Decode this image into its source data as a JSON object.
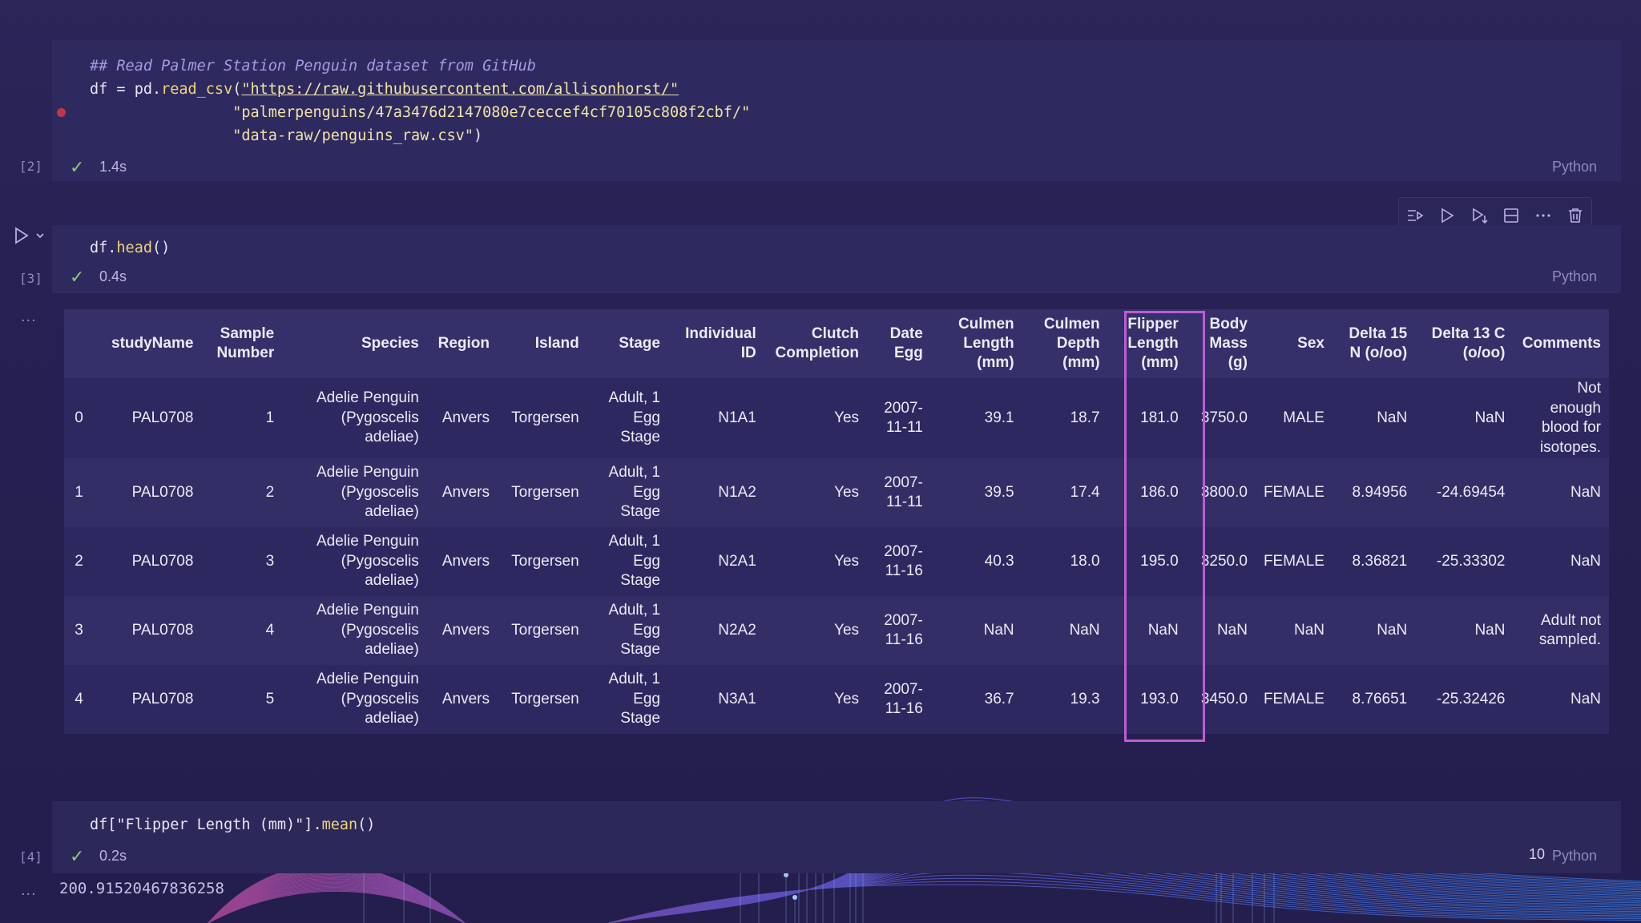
{
  "cells": {
    "c2": {
      "exec_label": "[2]",
      "comment": "## Read Palmer Station Penguin dataset from GitHub",
      "line1_pre": "df = pd.",
      "line1_fn": "read_csv",
      "line1_open": "(",
      "line1_str": "\"https://raw.githubusercontent.com/allisonhorst/\"",
      "line2_str": "\"palmerpenguins/47a3476d2147080e7ceccef4cf70105c808f2cbf/\"",
      "line3_str": "\"data-raw/penguins_raw.csv\"",
      "line3_close": ")",
      "time": "1.4s",
      "lang": "Python"
    },
    "c3": {
      "exec_label": "[3]",
      "code_pre": "df.",
      "code_fn": "head",
      "code_post": "()",
      "time": "0.4s",
      "lang": "Python"
    },
    "c4": {
      "exec_label": "[4]",
      "code_pre": "df[\"Flipper Length (mm)\"].",
      "code_fn": "mean",
      "code_post": "()",
      "time": "0.2s",
      "lang": "Python",
      "overlay_num": "10",
      "output": "200.91520467836258"
    },
    "ellipsis": "..."
  },
  "table": {
    "headers": [
      [
        "studyName"
      ],
      [
        "Sample",
        "Number"
      ],
      [
        "Species"
      ],
      [
        "Region"
      ],
      [
        "Island"
      ],
      [
        "Stage"
      ],
      [
        "Individual",
        "ID"
      ],
      [
        "Clutch",
        "Completion"
      ],
      [
        "Date",
        "Egg"
      ],
      [
        "Culmen",
        "Length",
        "(mm)"
      ],
      [
        "Culmen",
        "Depth",
        "(mm)"
      ],
      [
        "Flipper",
        "Length",
        "(mm)"
      ],
      [
        "Body",
        "Mass",
        "(g)"
      ],
      [
        "Sex"
      ],
      [
        "Delta 15",
        "N (o/oo)"
      ],
      [
        "Delta 13 C",
        "(o/oo)"
      ],
      [
        "Comments"
      ]
    ],
    "rows": [
      {
        "idx": "0",
        "cells": [
          [
            "PAL0708"
          ],
          [
            "1"
          ],
          [
            "Adelie Penguin",
            "(Pygoscelis adeliae)"
          ],
          [
            "Anvers"
          ],
          [
            "Torgersen"
          ],
          [
            "Adult, 1",
            "Egg",
            "Stage"
          ],
          [
            "N1A1"
          ],
          [
            "Yes"
          ],
          [
            "2007-",
            "11-11"
          ],
          [
            "39.1"
          ],
          [
            "18.7"
          ],
          [
            "181.0"
          ],
          [
            "3750.0"
          ],
          [
            "MALE"
          ],
          [
            "NaN"
          ],
          [
            "NaN"
          ],
          [
            "Not",
            "enough",
            "blood for",
            "isotopes."
          ]
        ]
      },
      {
        "idx": "1",
        "cells": [
          [
            "PAL0708"
          ],
          [
            "2"
          ],
          [
            "Adelie Penguin",
            "(Pygoscelis adeliae)"
          ],
          [
            "Anvers"
          ],
          [
            "Torgersen"
          ],
          [
            "Adult, 1",
            "Egg",
            "Stage"
          ],
          [
            "N1A2"
          ],
          [
            "Yes"
          ],
          [
            "2007-",
            "11-11"
          ],
          [
            "39.5"
          ],
          [
            "17.4"
          ],
          [
            "186.0"
          ],
          [
            "3800.0"
          ],
          [
            "FEMALE"
          ],
          [
            "8.94956"
          ],
          [
            "-24.69454"
          ],
          [
            "NaN"
          ]
        ]
      },
      {
        "idx": "2",
        "cells": [
          [
            "PAL0708"
          ],
          [
            "3"
          ],
          [
            "Adelie Penguin",
            "(Pygoscelis adeliae)"
          ],
          [
            "Anvers"
          ],
          [
            "Torgersen"
          ],
          [
            "Adult, 1",
            "Egg",
            "Stage"
          ],
          [
            "N2A1"
          ],
          [
            "Yes"
          ],
          [
            "2007-",
            "11-16"
          ],
          [
            "40.3"
          ],
          [
            "18.0"
          ],
          [
            "195.0"
          ],
          [
            "3250.0"
          ],
          [
            "FEMALE"
          ],
          [
            "8.36821"
          ],
          [
            "-25.33302"
          ],
          [
            "NaN"
          ]
        ]
      },
      {
        "idx": "3",
        "cells": [
          [
            "PAL0708"
          ],
          [
            "4"
          ],
          [
            "Adelie Penguin",
            "(Pygoscelis adeliae)"
          ],
          [
            "Anvers"
          ],
          [
            "Torgersen"
          ],
          [
            "Adult, 1",
            "Egg",
            "Stage"
          ],
          [
            "N2A2"
          ],
          [
            "Yes"
          ],
          [
            "2007-",
            "11-16"
          ],
          [
            "NaN"
          ],
          [
            "NaN"
          ],
          [
            "NaN"
          ],
          [
            "NaN"
          ],
          [
            "NaN"
          ],
          [
            "NaN"
          ],
          [
            "NaN"
          ],
          [
            "Adult not",
            "sampled."
          ]
        ]
      },
      {
        "idx": "4",
        "cells": [
          [
            "PAL0708"
          ],
          [
            "5"
          ],
          [
            "Adelie Penguin",
            "(Pygoscelis adeliae)"
          ],
          [
            "Anvers"
          ],
          [
            "Torgersen"
          ],
          [
            "Adult, 1",
            "Egg",
            "Stage"
          ],
          [
            "N3A1"
          ],
          [
            "Yes"
          ],
          [
            "2007-",
            "11-16"
          ],
          [
            "36.7"
          ],
          [
            "19.3"
          ],
          [
            "193.0"
          ],
          [
            "3450.0"
          ],
          [
            "FEMALE"
          ],
          [
            "8.76651"
          ],
          [
            "-25.32426"
          ],
          [
            "NaN"
          ]
        ]
      }
    ]
  },
  "colors": {
    "highlight": "#c05bd6",
    "check": "#8dc77e",
    "breakpoint": "#c2364b"
  }
}
